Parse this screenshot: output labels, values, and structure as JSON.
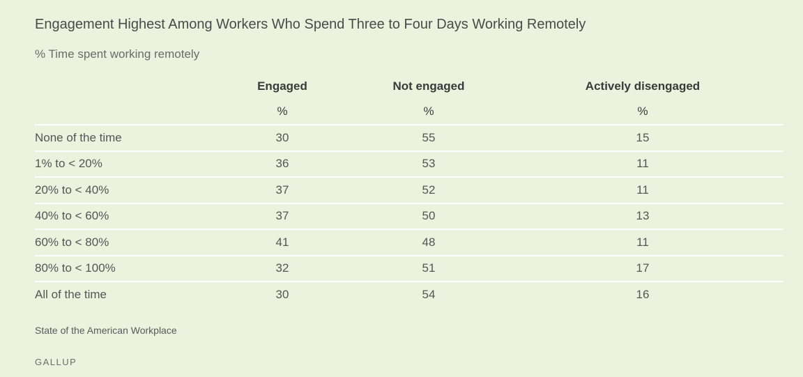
{
  "chart_data": {
    "type": "table",
    "title": "Engagement Highest Among Workers Who Spend Three to Four Days Working Remotely",
    "subtitle": "% Time spent working remotely",
    "columns": [
      "Engaged",
      "Not engaged",
      "Actively disengaged"
    ],
    "units": [
      "%",
      "%",
      "%"
    ],
    "rows": [
      {
        "label": "None of the time",
        "values": [
          "30",
          "55",
          "15"
        ]
      },
      {
        "label": "1% to < 20%",
        "values": [
          "36",
          "53",
          "11"
        ]
      },
      {
        "label": "20% to < 40%",
        "values": [
          "37",
          "52",
          "11"
        ]
      },
      {
        "label": "40% to < 60%",
        "values": [
          "37",
          "50",
          "13"
        ]
      },
      {
        "label": "60% to < 80%",
        "values": [
          "41",
          "48",
          "11"
        ]
      },
      {
        "label": "80% to < 100%",
        "values": [
          "32",
          "51",
          "17"
        ]
      },
      {
        "label": "All of the time",
        "values": [
          "30",
          "54",
          "16"
        ]
      }
    ]
  },
  "footer": {
    "source": "State of the American Workplace",
    "brand": "GALLUP"
  },
  "colors": {
    "background": "#edf2df",
    "row_divider": "#ffffff",
    "text": "#555555"
  }
}
